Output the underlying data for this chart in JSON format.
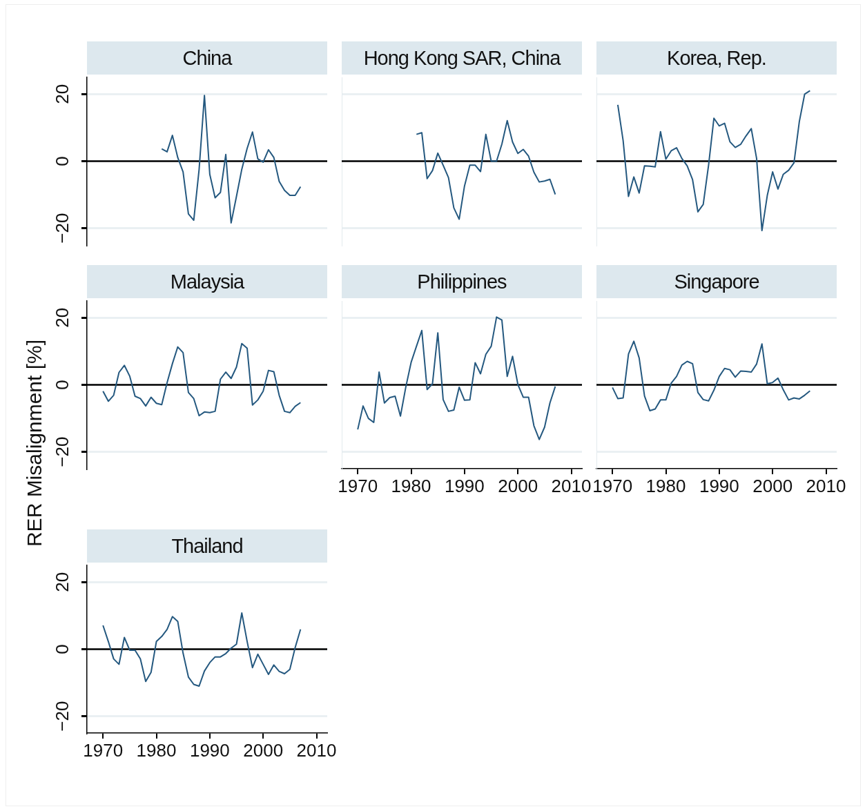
{
  "chart_data": [
    {
      "type": "line",
      "title": "China",
      "x": [
        1981,
        1982,
        1983,
        1984,
        1985,
        1986,
        1987,
        1988,
        1989,
        1990,
        1991,
        1992,
        1993,
        1994,
        1995,
        1996,
        1997,
        1998,
        1999,
        2000,
        2001,
        2002,
        2003,
        2004,
        2005,
        2006,
        2007
      ],
      "series": [
        {
          "color": "#24587f",
          "values": [
            3.7,
            2.8,
            7.7,
            1.1,
            -3.2,
            -15.7,
            -17.6,
            -2.5,
            19.6,
            -3.9,
            -10.9,
            -9.3,
            2.0,
            -18.4,
            -10.5,
            -2.4,
            3.8,
            8.7,
            0.7,
            -0.3,
            3.4,
            1.1,
            -6.0,
            -8.7,
            -10.2,
            -10.2,
            -7.6
          ]
        }
      ],
      "xlim": [
        1967,
        2012
      ],
      "xticks": [
        1970,
        1980,
        1990,
        2000,
        2010
      ],
      "ylim": [
        -25,
        25
      ],
      "yticks": [
        -20,
        0,
        20
      ],
      "grid": "y",
      "tick_labels": "y",
      "ref_lines": [
        {
          "axis": "y",
          "value": 0,
          "color": "#000000"
        }
      ]
    },
    {
      "type": "line",
      "title": "Hong Kong SAR, China",
      "x": [
        1981,
        1982,
        1983,
        1984,
        1985,
        1986,
        1987,
        1988,
        1989,
        1990,
        1991,
        1992,
        1993,
        1994,
        1995,
        1996,
        1997,
        1998,
        1999,
        2000,
        2001,
        2002,
        2003,
        2004,
        2005,
        2006,
        2007
      ],
      "series": [
        {
          "color": "#24587f",
          "values": [
            8.0,
            8.5,
            -5.2,
            -2.8,
            2.4,
            -1.2,
            -4.9,
            -13.9,
            -17.3,
            -7.4,
            -1.2,
            -1.2,
            -3.1,
            8.0,
            0,
            0,
            5.1,
            12.1,
            5.7,
            2.3,
            3.5,
            1.5,
            -3.3,
            -6.2,
            -5.9,
            -5.4,
            -9.9
          ]
        }
      ],
      "xlim": [
        1967,
        2012
      ],
      "xticks": [
        1970,
        1980,
        1990,
        2000,
        2010
      ],
      "ylim": [
        -25,
        25
      ],
      "yticks": [
        -20,
        0,
        20
      ],
      "grid": "y",
      "tick_labels": false,
      "ref_lines": [
        {
          "axis": "y",
          "value": 0,
          "color": "#000000"
        }
      ]
    },
    {
      "type": "line",
      "title": "Korea, Rep.",
      "x": [
        1971,
        1972,
        1973,
        1974,
        1975,
        1976,
        1977,
        1978,
        1979,
        1980,
        1981,
        1982,
        1983,
        1984,
        1985,
        1986,
        1987,
        1988,
        1989,
        1990,
        1991,
        1992,
        1993,
        1994,
        1995,
        1996,
        1997,
        1998,
        1999,
        2000,
        2001,
        2002,
        2003,
        2004,
        2005,
        2006,
        2007
      ],
      "series": [
        {
          "color": "#24587f",
          "values": [
            16.8,
            6.1,
            -10.5,
            -4.7,
            -9.5,
            -1.4,
            -1.5,
            -1.7,
            8.8,
            0.6,
            3.1,
            4.0,
            0.8,
            -1.4,
            -5.5,
            -15.1,
            -12.9,
            -1.2,
            12.8,
            10.5,
            11.3,
            5.8,
            4.1,
            5.0,
            7.5,
            9.7,
            0.8,
            -20.7,
            -10.2,
            -3.2,
            -8.3,
            -3.9,
            -2.7,
            -0.5,
            11.8,
            20.0,
            21.0
          ]
        }
      ],
      "xlim": [
        1967,
        2012
      ],
      "xticks": [
        1970,
        1980,
        1990,
        2000,
        2010
      ],
      "ylim": [
        -25,
        25
      ],
      "yticks": [
        -20,
        0,
        20
      ],
      "grid": "y",
      "tick_labels": false,
      "ref_lines": [
        {
          "axis": "y",
          "value": 0,
          "color": "#000000"
        }
      ]
    },
    {
      "type": "line",
      "title": "Malaysia",
      "ylabel": "RER Misalignment [%]",
      "x": [
        1970,
        1971,
        1972,
        1973,
        1974,
        1975,
        1976,
        1977,
        1978,
        1979,
        1980,
        1981,
        1982,
        1983,
        1984,
        1985,
        1986,
        1987,
        1988,
        1989,
        1990,
        1991,
        1992,
        1993,
        1994,
        1995,
        1996,
        1997,
        1998,
        1999,
        2000,
        2001,
        2002,
        2003,
        2004,
        2005,
        2006,
        2007
      ],
      "series": [
        {
          "color": "#24587f",
          "values": [
            -1.9,
            -4.9,
            -3.1,
            3.7,
            5.8,
            2.6,
            -3.4,
            -4.1,
            -6.3,
            -3.7,
            -5.5,
            -5.9,
            0.6,
            6.3,
            11.3,
            9.6,
            -2.3,
            -4.1,
            -9.2,
            -8.1,
            -8.3,
            -7.9,
            1.7,
            3.8,
            1.9,
            5.3,
            12.3,
            10.9,
            -6.0,
            -4.5,
            -1.9,
            4.3,
            3.9,
            -3.1,
            -7.9,
            -8.3,
            -6.4,
            -5.3
          ]
        }
      ],
      "xlim": [
        1967,
        2012
      ],
      "xticks": [
        1970,
        1980,
        1990,
        2000,
        2010
      ],
      "ylim": [
        -25,
        25
      ],
      "yticks": [
        -20,
        0,
        20
      ],
      "grid": "y",
      "tick_labels": "y",
      "ref_lines": [
        {
          "axis": "y",
          "value": 0,
          "color": "#000000"
        }
      ]
    },
    {
      "type": "line",
      "title": "Philippines",
      "x": [
        1970,
        1971,
        1972,
        1973,
        1974,
        1975,
        1976,
        1977,
        1978,
        1979,
        1980,
        1981,
        1982,
        1983,
        1984,
        1985,
        1986,
        1987,
        1988,
        1989,
        1990,
        1991,
        1992,
        1993,
        1994,
        1995,
        1996,
        1997,
        1998,
        1999,
        2000,
        2001,
        2002,
        2003,
        2004,
        2005,
        2006,
        2007
      ],
      "series": [
        {
          "color": "#24587f",
          "values": [
            -13.3,
            -6.3,
            -10.0,
            -11.2,
            3.8,
            -5.4,
            -3.8,
            -3.4,
            -9.3,
            -0.7,
            6.7,
            11.5,
            16.2,
            -1.4,
            0.3,
            15.5,
            -4.4,
            -7.9,
            -7.5,
            -0.7,
            -4.6,
            -4.5,
            6.6,
            3.3,
            9.1,
            11.5,
            20.2,
            19.3,
            2.5,
            8.5,
            0.1,
            -3.7,
            -3.7,
            -12.2,
            -16.3,
            -12.6,
            -5.4,
            -0.5
          ]
        }
      ],
      "xlim": [
        1967,
        2012
      ],
      "xticks": [
        1970,
        1980,
        1990,
        2000,
        2010
      ],
      "ylim": [
        -25,
        25
      ],
      "yticks": [
        -20,
        0,
        20
      ],
      "grid": "y",
      "tick_labels": "x",
      "ref_lines": [
        {
          "axis": "y",
          "value": 0,
          "color": "#000000"
        }
      ]
    },
    {
      "type": "line",
      "title": "Singapore",
      "x": [
        1970,
        1971,
        1972,
        1973,
        1974,
        1975,
        1976,
        1977,
        1978,
        1979,
        1980,
        1981,
        1982,
        1983,
        1984,
        1985,
        1986,
        1987,
        1988,
        1989,
        1990,
        1991,
        1992,
        1993,
        1994,
        1995,
        1996,
        1997,
        1998,
        1999,
        2000,
        2001,
        2002,
        2003,
        2004,
        2005,
        2006,
        2007
      ],
      "series": [
        {
          "color": "#24587f",
          "values": [
            -0.8,
            -4.1,
            -3.9,
            9.2,
            13.0,
            8.0,
            -3.3,
            -7.7,
            -7.2,
            -4.5,
            -4.5,
            0.5,
            2.5,
            5.9,
            7.0,
            6.3,
            -2.3,
            -4.4,
            -4.8,
            -1.6,
            2.5,
            4.9,
            4.5,
            2.3,
            4.1,
            4.0,
            3.8,
            6.2,
            12.2,
            0.3,
            0.7,
            2.0,
            -1.5,
            -4.5,
            -3.9,
            -4.2,
            -3.1,
            -1.8
          ]
        }
      ],
      "xlim": [
        1967,
        2012
      ],
      "xticks": [
        1970,
        1980,
        1990,
        2000,
        2010
      ],
      "ylim": [
        -25,
        25
      ],
      "yticks": [
        -20,
        0,
        20
      ],
      "grid": "y",
      "tick_labels": "x",
      "ref_lines": [
        {
          "axis": "y",
          "value": 0,
          "color": "#000000"
        }
      ]
    },
    {
      "type": "line",
      "title": "Thailand",
      "x": [
        1970,
        1971,
        1972,
        1973,
        1974,
        1975,
        1976,
        1977,
        1978,
        1979,
        1980,
        1981,
        1982,
        1983,
        1984,
        1985,
        1986,
        1987,
        1988,
        1989,
        1990,
        1991,
        1992,
        1993,
        1994,
        1995,
        1996,
        1997,
        1998,
        1999,
        2000,
        2001,
        2002,
        2003,
        2004,
        2005,
        2006,
        2007
      ],
      "series": [
        {
          "color": "#24587f",
          "values": [
            7.1,
            2.3,
            -2.9,
            -4.5,
            3.5,
            -0.3,
            -0.3,
            -2.9,
            -9.6,
            -6.9,
            2.3,
            3.8,
            5.9,
            9.7,
            8.3,
            -1.2,
            -8.3,
            -10.5,
            -11.0,
            -6.5,
            -4.0,
            -2.3,
            -2.3,
            -1.3,
            0.3,
            1.5,
            10.8,
            2.3,
            -5.5,
            -1.5,
            -4.5,
            -7.5,
            -4.7,
            -6.6,
            -7.3,
            -6.0,
            0.5,
            5.9
          ]
        }
      ],
      "xlim": [
        1967,
        2012
      ],
      "xticks": [
        1970,
        1980,
        1990,
        2000,
        2010
      ],
      "ylim": [
        -25,
        25
      ],
      "yticks": [
        -20,
        0,
        20
      ],
      "grid": "y",
      "ref_lines": [
        {
          "axis": "y",
          "value": 0,
          "color": "#000000"
        }
      ]
    }
  ]
}
